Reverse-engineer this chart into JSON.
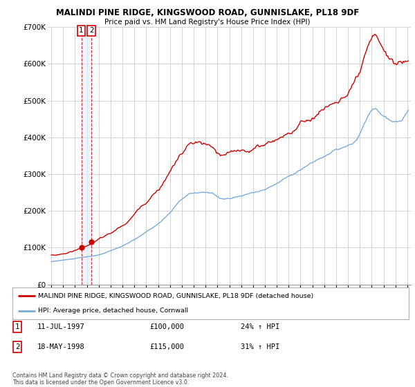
{
  "title": "MALINDI PINE RIDGE, KINGSWOOD ROAD, GUNNISLAKE, PL18 9DF",
  "subtitle": "Price paid vs. HM Land Registry's House Price Index (HPI)",
  "legend_line1": "MALINDI PINE RIDGE, KINGSWOOD ROAD, GUNNISLAKE, PL18 9DF (detached house)",
  "legend_line2": "HPI: Average price, detached house, Cornwall",
  "sale1_label": "1",
  "sale1_date": "11-JUL-1997",
  "sale1_price": "£100,000",
  "sale1_hpi": "24% ↑ HPI",
  "sale2_label": "2",
  "sale2_date": "18-MAY-1998",
  "sale2_price": "£115,000",
  "sale2_hpi": "31% ↑ HPI",
  "footnote": "Contains HM Land Registry data © Crown copyright and database right 2024.\nThis data is licensed under the Open Government Licence v3.0.",
  "hpi_color": "#7aabdb",
  "price_color": "#cc0000",
  "sale_marker_color": "#cc0000",
  "vline_color": "#cc0000",
  "vfill_color": "#ddeeff",
  "background_color": "#ffffff",
  "grid_color": "#cccccc",
  "ylim": [
    0,
    700000
  ],
  "yticks": [
    0,
    100000,
    200000,
    300000,
    400000,
    500000,
    600000,
    700000
  ],
  "sale_year1": 1997.53,
  "sale_year2": 1998.38,
  "sale_price1": 100000,
  "sale_price2": 115000,
  "xlabel_years": [
    1995,
    1996,
    1997,
    1998,
    1999,
    2000,
    2001,
    2002,
    2003,
    2004,
    2005,
    2006,
    2007,
    2008,
    2009,
    2010,
    2011,
    2012,
    2013,
    2014,
    2015,
    2016,
    2017,
    2018,
    2019,
    2020,
    2021,
    2022,
    2023,
    2024,
    2025
  ]
}
